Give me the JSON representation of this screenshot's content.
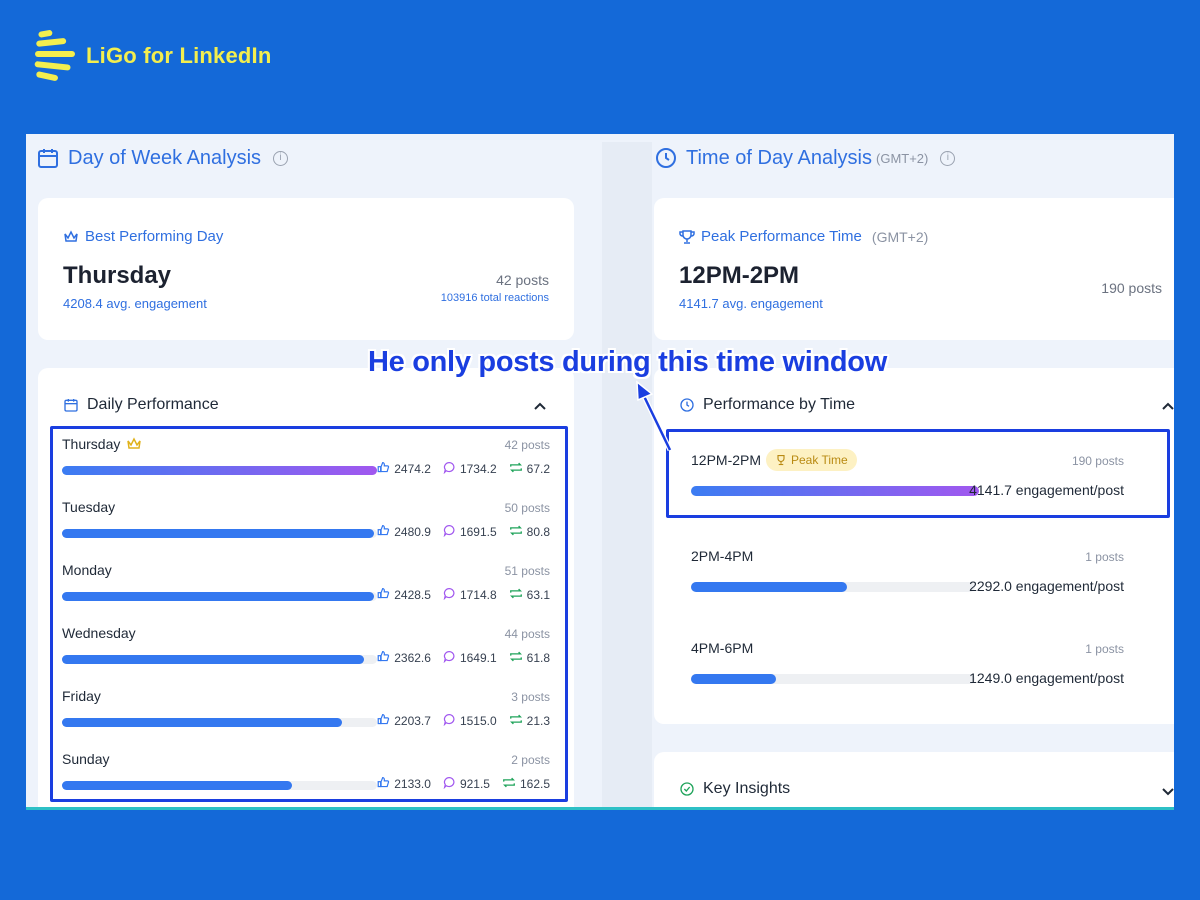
{
  "brand": {
    "name": "LiGo for LinkedIn",
    "color": "#f3ee4e"
  },
  "annotation": "He only posts during this time window",
  "day_analysis": {
    "title": "Day of Week Analysis",
    "best": {
      "heading": "Best Performing Day",
      "day": "Thursday",
      "avg": "4208.4 avg. engagement",
      "posts": "42 posts",
      "reactions": "103916 total reactions"
    },
    "daily": {
      "heading": "Daily Performance",
      "rows": [
        {
          "day": "Thursday",
          "posts": "42 posts",
          "likes": "2474.2",
          "comments": "1734.2",
          "reposts": "67.2",
          "fill": 1.0,
          "top": true
        },
        {
          "day": "Tuesday",
          "posts": "50 posts",
          "likes": "2480.9",
          "comments": "1691.5",
          "reposts": "80.8",
          "fill": 0.99
        },
        {
          "day": "Monday",
          "posts": "51 posts",
          "likes": "2428.5",
          "comments": "1714.8",
          "reposts": "63.1",
          "fill": 0.99
        },
        {
          "day": "Wednesday",
          "posts": "44 posts",
          "likes": "2362.6",
          "comments": "1649.1",
          "reposts": "61.8",
          "fill": 0.96
        },
        {
          "day": "Friday",
          "posts": "3 posts",
          "likes": "2203.7",
          "comments": "1515.0",
          "reposts": "21.3",
          "fill": 0.89
        },
        {
          "day": "Sunday",
          "posts": "2 posts",
          "likes": "2133.0",
          "comments": "921.5",
          "reposts": "162.5",
          "fill": 0.73
        }
      ]
    }
  },
  "time_analysis": {
    "title": "Time of Day Analysis",
    "tz": "(GMT+2)",
    "peak": {
      "heading": "Peak Performance Time",
      "tz": "(GMT+2)",
      "time": "12PM-2PM",
      "avg": "4141.7 avg. engagement",
      "posts": "190 posts"
    },
    "by_time": {
      "heading": "Performance by Time",
      "peak_badge": "Peak Time",
      "rows": [
        {
          "time": "12PM-2PM",
          "posts": "190 posts",
          "engagement": "4141.7 engagement/post",
          "fill": 1.0
        },
        {
          "time": "2PM-4PM",
          "posts": "1 posts",
          "engagement": "2292.0 engagement/post",
          "fill": 0.55
        },
        {
          "time": "4PM-6PM",
          "posts": "1 posts",
          "engagement": "1249.0 engagement/post",
          "fill": 0.3
        }
      ]
    },
    "insights": {
      "heading": "Key Insights"
    }
  },
  "colors": {
    "accent": "#2f6fe0",
    "highlight_border": "#1a3ee0",
    "background": "#1469d8"
  },
  "icons": [
    "ligo-logo-icon",
    "calendar-icon",
    "clock-icon",
    "crown-icon",
    "trophy-icon",
    "info-icon",
    "chevron-up-icon",
    "chevron-down-icon",
    "thumbs-up-icon",
    "comment-icon",
    "repost-icon",
    "check-circle-icon",
    "arrow-icon"
  ]
}
